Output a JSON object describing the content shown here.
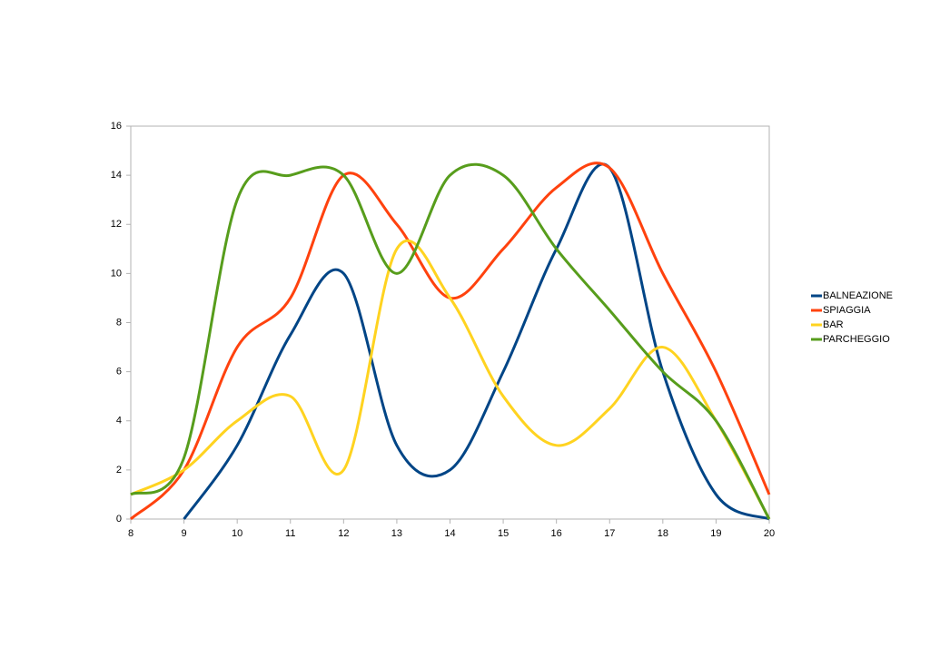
{
  "chart_data": {
    "type": "line",
    "smooth": true,
    "x": [
      8,
      9,
      10,
      11,
      12,
      13,
      14,
      15,
      16,
      17,
      18,
      19,
      20
    ],
    "series": [
      {
        "name": "BALNEAZIONE",
        "color": "#004586",
        "values": [
          null,
          0,
          3,
          7.5,
          10,
          3,
          2,
          6,
          11,
          14.3,
          6,
          1,
          0
        ]
      },
      {
        "name": "SPIAGGIA",
        "color": "#ff420e",
        "values": [
          0,
          2,
          7,
          9,
          14,
          12,
          9,
          11,
          13.5,
          14.3,
          10,
          6,
          1
        ]
      },
      {
        "name": "BAR",
        "color": "#ffd320",
        "values": [
          1,
          2,
          4,
          5,
          2,
          11,
          9,
          5,
          3,
          4.5,
          7,
          4,
          0
        ]
      },
      {
        "name": "PARCHEGGIO",
        "color": "#579d1c",
        "values": [
          1,
          2.5,
          13,
          14,
          14,
          10,
          14,
          14,
          11,
          8.5,
          6,
          4,
          0
        ]
      }
    ],
    "xlim": [
      8,
      20
    ],
    "xticks": [
      8,
      9,
      10,
      11,
      12,
      13,
      14,
      15,
      16,
      17,
      18,
      19,
      20
    ],
    "ylim": [
      0,
      16
    ],
    "yticks": [
      0,
      2,
      4,
      6,
      8,
      10,
      12,
      14,
      16
    ],
    "legend": "right"
  }
}
